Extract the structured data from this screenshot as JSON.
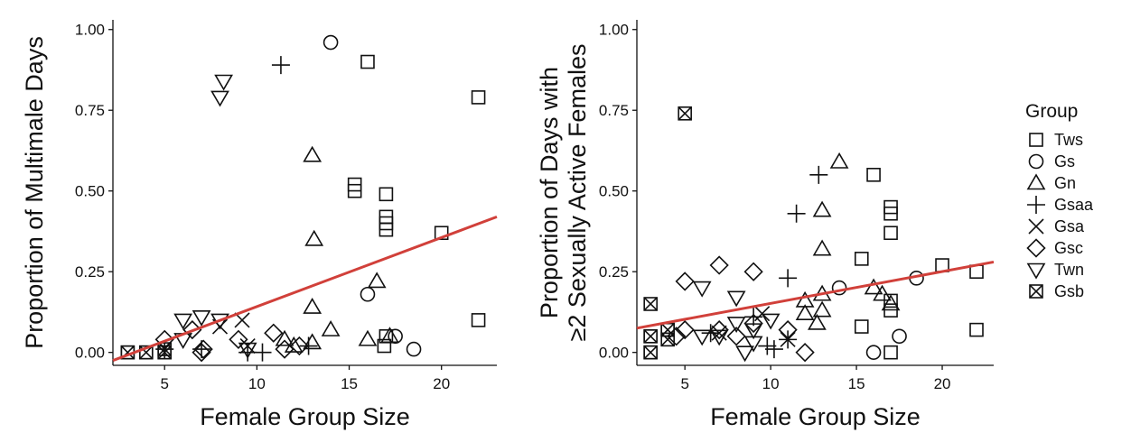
{
  "colors": {
    "marker": "#111111",
    "fit_line": "#d1403a",
    "axis": "#111111"
  },
  "legend": {
    "title": "Group",
    "entries": [
      {
        "label": "Tws",
        "shape": "square"
      },
      {
        "label": "Gs",
        "shape": "circle"
      },
      {
        "label": "Gn",
        "shape": "triangle-up"
      },
      {
        "label": "Gsaa",
        "shape": "plus"
      },
      {
        "label": "Gsa",
        "shape": "cross"
      },
      {
        "label": "Gsc",
        "shape": "diamond"
      },
      {
        "label": "Twn",
        "shape": "triangle-down"
      },
      {
        "label": "Gsb",
        "shape": "boxed-x"
      }
    ]
  },
  "chart_data": [
    {
      "type": "scatter",
      "xlabel": "Female Group Size",
      "ylabel": "Proportion of Multimale Days",
      "xlim": [
        2.2,
        23
      ],
      "ylim": [
        -0.04,
        1.03
      ],
      "xticks": [
        5,
        10,
        15,
        20
      ],
      "xtick_labels": [
        "5",
        "10",
        "15",
        "20"
      ],
      "yticks": [
        0,
        0.25,
        0.5,
        0.75,
        1
      ],
      "ytick_labels": [
        "0.00",
        "0.25",
        "0.50",
        "0.75",
        "1.00"
      ],
      "grid": false,
      "fit_line": {
        "x": [
          2.2,
          23
        ],
        "y": [
          -0.025,
          0.42
        ]
      },
      "series": [
        {
          "name": "Tws",
          "points": [
            [
              3,
              0
            ],
            [
              4,
              0
            ],
            [
              5,
              0
            ],
            [
              15.3,
              0.5
            ],
            [
              15.3,
              0.52
            ],
            [
              16,
              0.9
            ],
            [
              17,
              0.49
            ],
            [
              17,
              0.42
            ],
            [
              17,
              0.4
            ],
            [
              17,
              0.38
            ],
            [
              17,
              0.05
            ],
            [
              16.9,
              0.02
            ],
            [
              20,
              0.37
            ],
            [
              22,
              0.79
            ],
            [
              22,
              0.1
            ]
          ]
        },
        {
          "name": "Gs",
          "points": [
            [
              14,
              0.96
            ],
            [
              16,
              0.18
            ],
            [
              17.5,
              0.05
            ],
            [
              18.5,
              0.01
            ]
          ]
        },
        {
          "name": "Gn",
          "points": [
            [
              11.5,
              0.04
            ],
            [
              12,
              0.02
            ],
            [
              13,
              0.61
            ],
            [
              13.1,
              0.35
            ],
            [
              13,
              0.14
            ],
            [
              13,
              0.03
            ],
            [
              14,
              0.07
            ],
            [
              16,
              0.04
            ],
            [
              16.5,
              0.22
            ],
            [
              17.2,
              0.05
            ]
          ]
        },
        {
          "name": "Gsaa",
          "points": [
            [
              5,
              0.01
            ],
            [
              7,
              0.01
            ],
            [
              9.5,
              0.0
            ],
            [
              10.3,
              0.0
            ],
            [
              11.3,
              0.89
            ],
            [
              12.8,
              0.02
            ]
          ]
        },
        {
          "name": "Gsa",
          "points": [
            [
              8,
              0.08
            ],
            [
              9.2,
              0.1
            ],
            [
              9.5,
              0.02
            ]
          ]
        },
        {
          "name": "Gsc",
          "points": [
            [
              5,
              0.04
            ],
            [
              6.5,
              0.07
            ],
            [
              7,
              0.0
            ],
            [
              7.1,
              0.01
            ],
            [
              9,
              0.04
            ],
            [
              10.9,
              0.06
            ],
            [
              11.5,
              0.01
            ],
            [
              12.3,
              0.02
            ]
          ]
        },
        {
          "name": "Twn",
          "points": [
            [
              6,
              0.1
            ],
            [
              6,
              0.04
            ],
            [
              7,
              0.11
            ],
            [
              8,
              0.1
            ],
            [
              8.2,
              0.84
            ],
            [
              8,
              0.79
            ],
            [
              9.5,
              0.01
            ]
          ]
        },
        {
          "name": "Gsb",
          "points": [
            [
              3,
              0
            ],
            [
              4,
              0
            ],
            [
              5,
              0
            ],
            [
              5,
              0.01
            ]
          ]
        }
      ]
    },
    {
      "type": "scatter",
      "xlabel": "Female Group Size",
      "ylabel": "Proportion of Days with",
      "ylabel2": "≥2 Sexually Active Females",
      "xlim": [
        2.2,
        23
      ],
      "ylim": [
        -0.04,
        1.03
      ],
      "xticks": [
        5,
        10,
        15,
        20
      ],
      "xtick_labels": [
        "5",
        "10",
        "15",
        "20"
      ],
      "yticks": [
        0,
        0.25,
        0.5,
        0.75,
        1
      ],
      "ytick_labels": [
        "0.00",
        "0.25",
        "0.50",
        "0.75",
        "1.00"
      ],
      "grid": false,
      "fit_line": {
        "x": [
          2.2,
          23
        ],
        "y": [
          0.075,
          0.28
        ]
      },
      "series": [
        {
          "name": "Tws",
          "points": [
            [
              3,
              0.0
            ],
            [
              3,
              0.05
            ],
            [
              4,
              0.07
            ],
            [
              15.3,
              0.29
            ],
            [
              15.3,
              0.08
            ],
            [
              16,
              0.55
            ],
            [
              17,
              0.45
            ],
            [
              17,
              0.43
            ],
            [
              17,
              0.37
            ],
            [
              17,
              0.16
            ],
            [
              17,
              0.13
            ],
            [
              17,
              0.0
            ],
            [
              20,
              0.27
            ],
            [
              22,
              0.25
            ],
            [
              22,
              0.07
            ]
          ]
        },
        {
          "name": "Gs",
          "points": [
            [
              14,
              0.2
            ],
            [
              16,
              0.0
            ],
            [
              17.5,
              0.05
            ],
            [
              18.5,
              0.23
            ]
          ]
        },
        {
          "name": "Gn",
          "points": [
            [
              12,
              0.16
            ],
            [
              12,
              0.12
            ],
            [
              12.7,
              0.09
            ],
            [
              13,
              0.18
            ],
            [
              13,
              0.13
            ],
            [
              13,
              0.32
            ],
            [
              13,
              0.44
            ],
            [
              14,
              0.59
            ],
            [
              16,
              0.2
            ],
            [
              16.5,
              0.18
            ],
            [
              17,
              0.15
            ]
          ]
        },
        {
          "name": "Gsaa",
          "points": [
            [
              6.5,
              0.06
            ],
            [
              9,
              0.11
            ],
            [
              9.8,
              0.02
            ],
            [
              11,
              0.23
            ],
            [
              11.5,
              0.43
            ],
            [
              12.8,
              0.55
            ],
            [
              10.2,
              0.01
            ],
            [
              11,
              0.04
            ]
          ]
        },
        {
          "name": "Gsa",
          "points": [
            [
              7,
              0.06
            ],
            [
              9.5,
              0.12
            ],
            [
              11,
              0.04
            ]
          ]
        },
        {
          "name": "Gsc",
          "points": [
            [
              4.5,
              0.05
            ],
            [
              5,
              0.22
            ],
            [
              5,
              0.07
            ],
            [
              7,
              0.27
            ],
            [
              7,
              0.07
            ],
            [
              8,
              0.05
            ],
            [
              9,
              0.25
            ],
            [
              9,
              0.09
            ],
            [
              11,
              0.07
            ],
            [
              12,
              0.0
            ]
          ]
        },
        {
          "name": "Twn",
          "points": [
            [
              6,
              0.2
            ],
            [
              6,
              0.05
            ],
            [
              7,
              0.05
            ],
            [
              8,
              0.17
            ],
            [
              8,
              0.09
            ],
            [
              8.5,
              0.0
            ],
            [
              9,
              0.03
            ],
            [
              9,
              0.07
            ],
            [
              10,
              0.1
            ]
          ]
        },
        {
          "name": "Gsb",
          "points": [
            [
              3,
              0.15
            ],
            [
              3,
              0.05
            ],
            [
              3,
              0.0
            ],
            [
              4,
              0.07
            ],
            [
              4,
              0.04
            ],
            [
              5,
              0.74
            ]
          ]
        }
      ]
    }
  ]
}
